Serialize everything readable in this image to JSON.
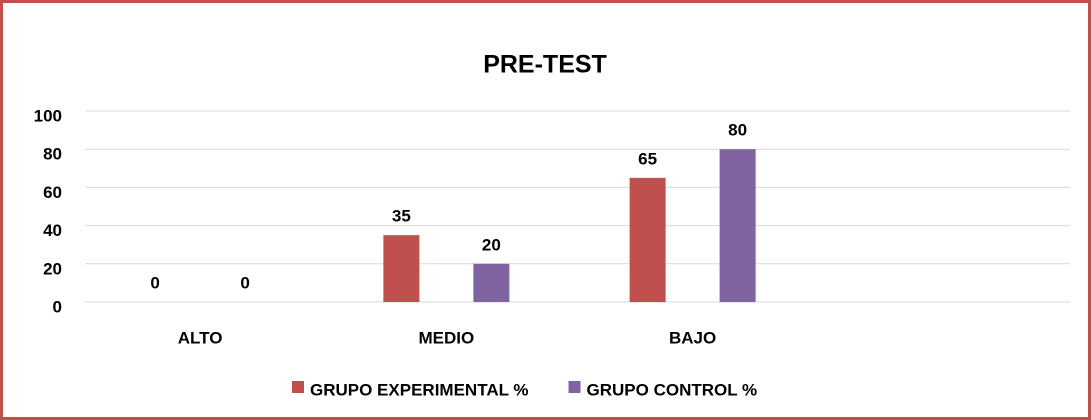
{
  "chart_data": {
    "type": "bar",
    "title": "PRE-TEST",
    "categories": [
      "ALTO",
      "MEDIO",
      "BAJO",
      null
    ],
    "series": [
      {
        "name": "GRUPO EXPERIMENTAL %",
        "color": "#c0504d",
        "values": [
          0,
          35,
          65,
          null
        ]
      },
      {
        "name": "GRUPO CONTROL %",
        "color": "#8064a2",
        "values": [
          0,
          20,
          80,
          null
        ]
      }
    ],
    "ylim": [
      0,
      100
    ],
    "yticks": [
      0,
      20,
      40,
      60,
      80,
      100
    ],
    "grid": true,
    "legend": "bottom"
  }
}
